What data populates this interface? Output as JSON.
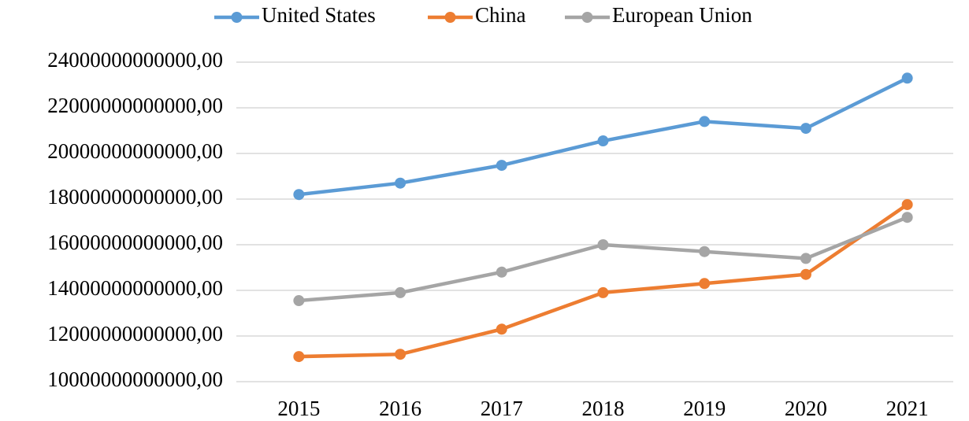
{
  "chart_data": {
    "type": "line",
    "categories": [
      "2015",
      "2016",
      "2017",
      "2018",
      "2019",
      "2020",
      "2021"
    ],
    "series": [
      {
        "name": "United States",
        "color": "#5b9bd5",
        "values": [
          18200000000000,
          18700000000000,
          19480000000000,
          20550000000000,
          21400000000000,
          21100000000000,
          23300000000000
        ]
      },
      {
        "name": "China",
        "color": "#ed7d31",
        "values": [
          11100000000000,
          11200000000000,
          12300000000000,
          13900000000000,
          14300000000000,
          14700000000000,
          17760000000000
        ]
      },
      {
        "name": "European Union",
        "color": "#a5a5a5",
        "values": [
          13550000000000,
          13900000000000,
          14800000000000,
          16000000000000,
          15700000000000,
          15400000000000,
          17200000000000
        ]
      }
    ],
    "ylim": [
      10000000000000,
      24000000000000
    ],
    "yticks": [
      {
        "value": 10000000000000,
        "label": "10000000000000,00"
      },
      {
        "value": 12000000000000,
        "label": "12000000000000,00"
      },
      {
        "value": 14000000000000,
        "label": "14000000000000,00"
      },
      {
        "value": 16000000000000,
        "label": "16000000000000,00"
      },
      {
        "value": 18000000000000,
        "label": "18000000000000,00"
      },
      {
        "value": 20000000000000,
        "label": "20000000000000,00"
      },
      {
        "value": 22000000000000,
        "label": "22000000000000,00"
      },
      {
        "value": 24000000000000,
        "label": "24000000000000,00"
      }
    ],
    "grid": true,
    "legend": "top"
  }
}
